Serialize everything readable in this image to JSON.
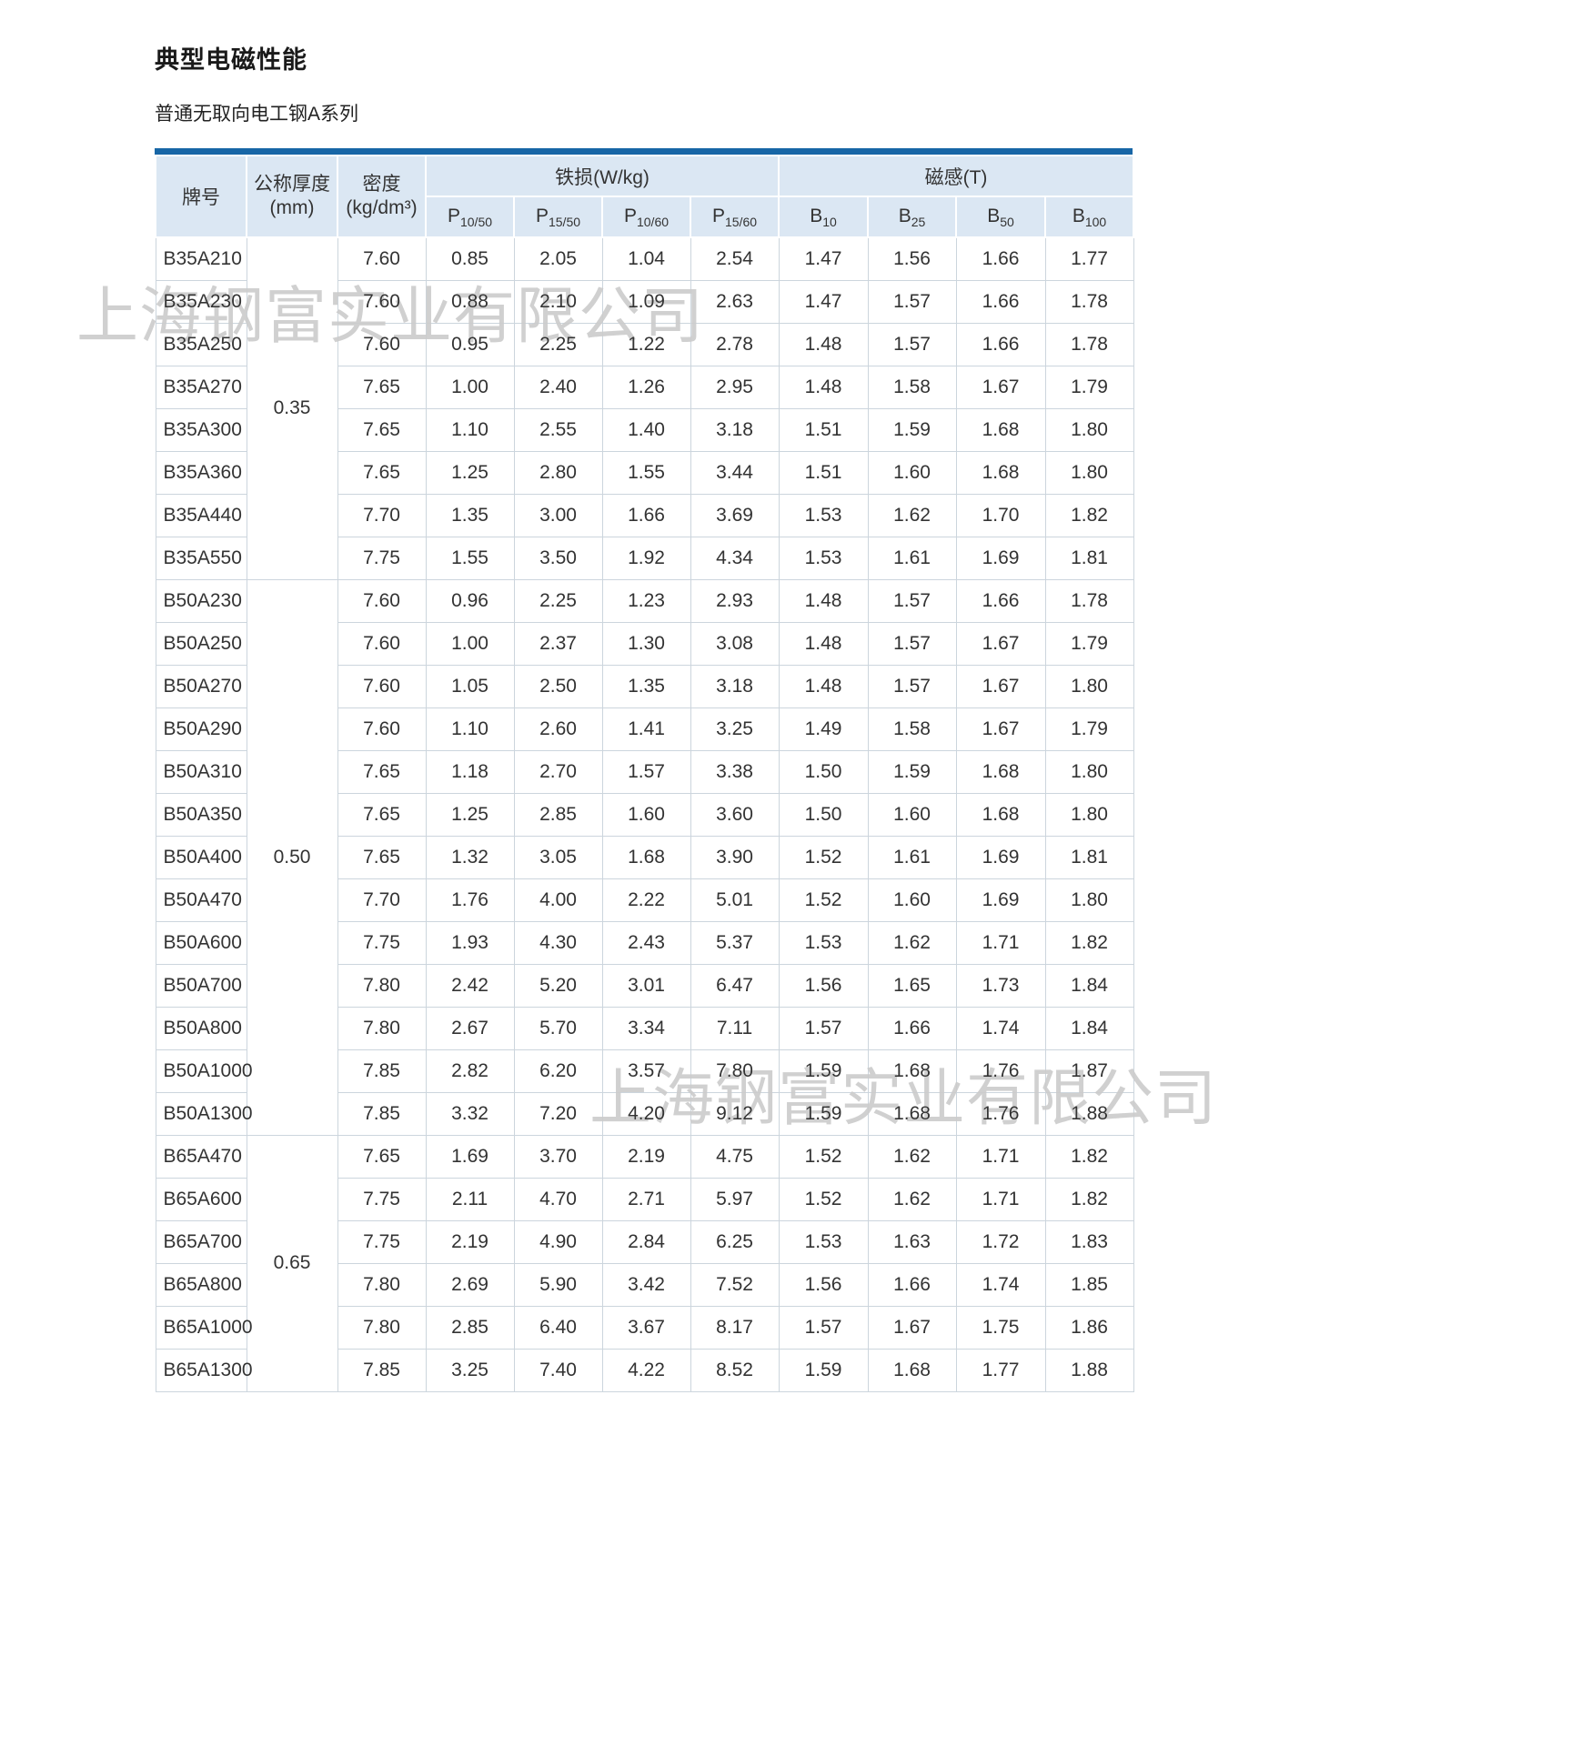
{
  "page": {
    "title": "典型电磁性能",
    "subtitle": "普通无取向电工钢A系列"
  },
  "watermark": {
    "text": "上海钢富实业有限公司"
  },
  "colors": {
    "accent_bar": "#1766a6",
    "header_bg": "#dbe7f3"
  },
  "table": {
    "header": {
      "grade": "牌号",
      "thickness": [
        "公称厚度",
        "(mm)"
      ],
      "density": [
        "密度",
        "(kg/dm³)"
      ],
      "iron_loss_group": "铁损(W/kg)",
      "induction_group": "磁感(T)",
      "loss_cols": [
        {
          "base": "P",
          "sub": "10/50"
        },
        {
          "base": "P",
          "sub": "15/50"
        },
        {
          "base": "P",
          "sub": "10/60"
        },
        {
          "base": "P",
          "sub": "15/60"
        }
      ],
      "induction_cols": [
        {
          "base": "B",
          "sub": "10"
        },
        {
          "base": "B",
          "sub": "25"
        },
        {
          "base": "B",
          "sub": "50"
        },
        {
          "base": "B",
          "sub": "100"
        }
      ]
    },
    "groups": [
      {
        "thickness": "0.35",
        "rows": [
          {
            "grade": "B35A210",
            "values": [
              "7.60",
              "0.85",
              "2.05",
              "1.04",
              "2.54",
              "1.47",
              "1.56",
              "1.66",
              "1.77"
            ]
          },
          {
            "grade": "B35A230",
            "values": [
              "7.60",
              "0.88",
              "2.10",
              "1.09",
              "2.63",
              "1.47",
              "1.57",
              "1.66",
              "1.78"
            ]
          },
          {
            "grade": "B35A250",
            "values": [
              "7.60",
              "0.95",
              "2.25",
              "1.22",
              "2.78",
              "1.48",
              "1.57",
              "1.66",
              "1.78"
            ]
          },
          {
            "grade": "B35A270",
            "values": [
              "7.65",
              "1.00",
              "2.40",
              "1.26",
              "2.95",
              "1.48",
              "1.58",
              "1.67",
              "1.79"
            ]
          },
          {
            "grade": "B35A300",
            "values": [
              "7.65",
              "1.10",
              "2.55",
              "1.40",
              "3.18",
              "1.51",
              "1.59",
              "1.68",
              "1.80"
            ]
          },
          {
            "grade": "B35A360",
            "values": [
              "7.65",
              "1.25",
              "2.80",
              "1.55",
              "3.44",
              "1.51",
              "1.60",
              "1.68",
              "1.80"
            ]
          },
          {
            "grade": "B35A440",
            "values": [
              "7.70",
              "1.35",
              "3.00",
              "1.66",
              "3.69",
              "1.53",
              "1.62",
              "1.70",
              "1.82"
            ]
          },
          {
            "grade": "B35A550",
            "values": [
              "7.75",
              "1.55",
              "3.50",
              "1.92",
              "4.34",
              "1.53",
              "1.61",
              "1.69",
              "1.81"
            ]
          }
        ]
      },
      {
        "thickness": "0.50",
        "rows": [
          {
            "grade": "B50A230",
            "values": [
              "7.60",
              "0.96",
              "2.25",
              "1.23",
              "2.93",
              "1.48",
              "1.57",
              "1.66",
              "1.78"
            ]
          },
          {
            "grade": "B50A250",
            "values": [
              "7.60",
              "1.00",
              "2.37",
              "1.30",
              "3.08",
              "1.48",
              "1.57",
              "1.67",
              "1.79"
            ]
          },
          {
            "grade": "B50A270",
            "values": [
              "7.60",
              "1.05",
              "2.50",
              "1.35",
              "3.18",
              "1.48",
              "1.57",
              "1.67",
              "1.80"
            ]
          },
          {
            "grade": "B50A290",
            "values": [
              "7.60",
              "1.10",
              "2.60",
              "1.41",
              "3.25",
              "1.49",
              "1.58",
              "1.67",
              "1.79"
            ]
          },
          {
            "grade": "B50A310",
            "values": [
              "7.65",
              "1.18",
              "2.70",
              "1.57",
              "3.38",
              "1.50",
              "1.59",
              "1.68",
              "1.80"
            ]
          },
          {
            "grade": "B50A350",
            "values": [
              "7.65",
              "1.25",
              "2.85",
              "1.60",
              "3.60",
              "1.50",
              "1.60",
              "1.68",
              "1.80"
            ]
          },
          {
            "grade": "B50A400",
            "values": [
              "7.65",
              "1.32",
              "3.05",
              "1.68",
              "3.90",
              "1.52",
              "1.61",
              "1.69",
              "1.81"
            ]
          },
          {
            "grade": "B50A470",
            "values": [
              "7.70",
              "1.76",
              "4.00",
              "2.22",
              "5.01",
              "1.52",
              "1.60",
              "1.69",
              "1.80"
            ]
          },
          {
            "grade": "B50A600",
            "values": [
              "7.75",
              "1.93",
              "4.30",
              "2.43",
              "5.37",
              "1.53",
              "1.62",
              "1.71",
              "1.82"
            ]
          },
          {
            "grade": "B50A700",
            "values": [
              "7.80",
              "2.42",
              "5.20",
              "3.01",
              "6.47",
              "1.56",
              "1.65",
              "1.73",
              "1.84"
            ]
          },
          {
            "grade": "B50A800",
            "values": [
              "7.80",
              "2.67",
              "5.70",
              "3.34",
              "7.11",
              "1.57",
              "1.66",
              "1.74",
              "1.84"
            ]
          },
          {
            "grade": "B50A1000",
            "values": [
              "7.85",
              "2.82",
              "6.20",
              "3.57",
              "7.80",
              "1.59",
              "1.68",
              "1.76",
              "1.87"
            ]
          },
          {
            "grade": "B50A1300",
            "values": [
              "7.85",
              "3.32",
              "7.20",
              "4.20",
              "9.12",
              "1.59",
              "1.68",
              "1.76",
              "1.88"
            ]
          }
        ]
      },
      {
        "thickness": "0.65",
        "rows": [
          {
            "grade": "B65A470",
            "values": [
              "7.65",
              "1.69",
              "3.70",
              "2.19",
              "4.75",
              "1.52",
              "1.62",
              "1.71",
              "1.82"
            ]
          },
          {
            "grade": "B65A600",
            "values": [
              "7.75",
              "2.11",
              "4.70",
              "2.71",
              "5.97",
              "1.52",
              "1.62",
              "1.71",
              "1.82"
            ]
          },
          {
            "grade": "B65A700",
            "values": [
              "7.75",
              "2.19",
              "4.90",
              "2.84",
              "6.25",
              "1.53",
              "1.63",
              "1.72",
              "1.83"
            ]
          },
          {
            "grade": "B65A800",
            "values": [
              "7.80",
              "2.69",
              "5.90",
              "3.42",
              "7.52",
              "1.56",
              "1.66",
              "1.74",
              "1.85"
            ]
          },
          {
            "grade": "B65A1000",
            "values": [
              "7.80",
              "2.85",
              "6.40",
              "3.67",
              "8.17",
              "1.57",
              "1.67",
              "1.75",
              "1.86"
            ]
          },
          {
            "grade": "B65A1300",
            "values": [
              "7.85",
              "3.25",
              "7.40",
              "4.22",
              "8.52",
              "1.59",
              "1.68",
              "1.77",
              "1.88"
            ]
          }
        ]
      }
    ]
  }
}
